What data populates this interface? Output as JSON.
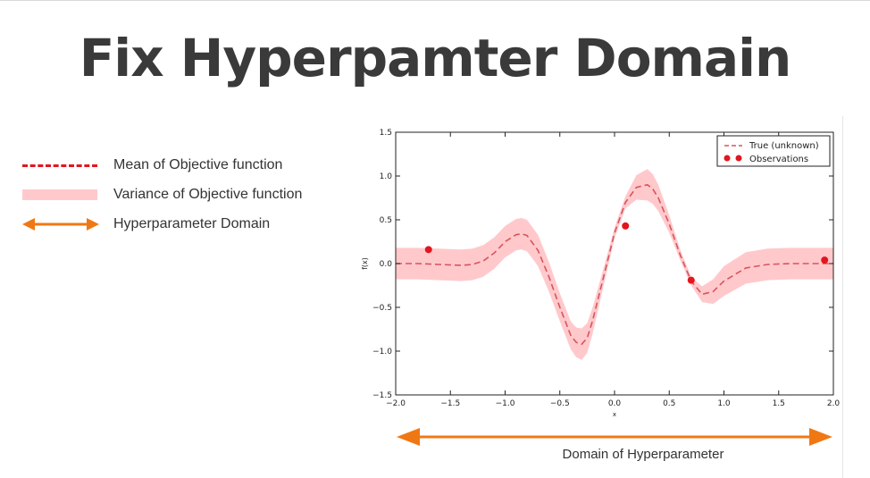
{
  "title": "Fix Hyperpamter Domain",
  "side_legend": [
    {
      "label": "Mean of Objective function",
      "icon": "dashed-line-icon"
    },
    {
      "label": "Variance of Objective function",
      "icon": "shaded-band-icon"
    },
    {
      "label": "Hyperparameter Domain",
      "icon": "double-arrow-icon"
    }
  ],
  "domain_label": "Domain of Hyperparameter",
  "colors": {
    "mean": "#d9545c",
    "band": "#ffc9cc",
    "points": "#e2161e",
    "arrow": "#f07814",
    "text": "#333333",
    "title": "#3a3a3a"
  },
  "chart_data": {
    "type": "line",
    "xlabel": "x",
    "ylabel": "f(x)",
    "xlim": [
      -2.0,
      2.0
    ],
    "ylim": [
      -1.5,
      1.5
    ],
    "xticks": [
      -2.0,
      -1.5,
      -1.0,
      -0.5,
      0.0,
      0.5,
      1.0,
      1.5,
      2.0
    ],
    "yticks": [
      -1.5,
      -1.0,
      -0.5,
      0.0,
      0.5,
      1.0,
      1.5
    ],
    "xtick_labels": [
      "−2.0",
      "−1.5",
      "−1.0",
      "−0.5",
      "0.0",
      "0.5",
      "1.0",
      "1.5",
      "2.0"
    ],
    "ytick_labels": [
      "−1.5",
      "−1.0",
      "−0.5",
      "0.0",
      "0.5",
      "1.0",
      "1.5"
    ],
    "legend_position": "top-right",
    "grid": false,
    "legend": [
      {
        "label": "True (unknown)",
        "style": "dashed-line"
      },
      {
        "label": "Observations",
        "style": "points"
      }
    ],
    "mean": {
      "x": [
        -2.0,
        -1.8,
        -1.6,
        -1.4,
        -1.3,
        -1.2,
        -1.1,
        -1.0,
        -0.9,
        -0.85,
        -0.8,
        -0.7,
        -0.6,
        -0.5,
        -0.4,
        -0.35,
        -0.3,
        -0.25,
        -0.2,
        -0.1,
        0.0,
        0.1,
        0.2,
        0.3,
        0.35,
        0.4,
        0.5,
        0.6,
        0.7,
        0.8,
        0.9,
        1.0,
        1.2,
        1.4,
        1.6,
        1.8,
        2.0
      ],
      "y": [
        0.0,
        0.0,
        -0.01,
        -0.02,
        -0.01,
        0.03,
        0.12,
        0.25,
        0.33,
        0.34,
        0.32,
        0.15,
        -0.15,
        -0.5,
        -0.82,
        -0.9,
        -0.92,
        -0.85,
        -0.65,
        -0.15,
        0.35,
        0.7,
        0.87,
        0.9,
        0.85,
        0.75,
        0.45,
        0.1,
        -0.2,
        -0.35,
        -0.32,
        -0.2,
        -0.05,
        -0.01,
        0.0,
        0.0,
        0.0
      ]
    },
    "band_halfwidth": [
      0.18,
      0.18,
      0.18,
      0.18,
      0.18,
      0.18,
      0.18,
      0.18,
      0.18,
      0.18,
      0.18,
      0.18,
      0.17,
      0.16,
      0.16,
      0.17,
      0.18,
      0.17,
      0.15,
      0.1,
      0.06,
      0.07,
      0.14,
      0.18,
      0.17,
      0.15,
      0.1,
      0.06,
      0.05,
      0.09,
      0.14,
      0.17,
      0.18,
      0.18,
      0.18,
      0.18,
      0.18
    ],
    "observations": {
      "x": [
        -1.7,
        0.1,
        0.7,
        1.92
      ],
      "y": [
        0.16,
        0.43,
        -0.19,
        0.04
      ]
    }
  }
}
